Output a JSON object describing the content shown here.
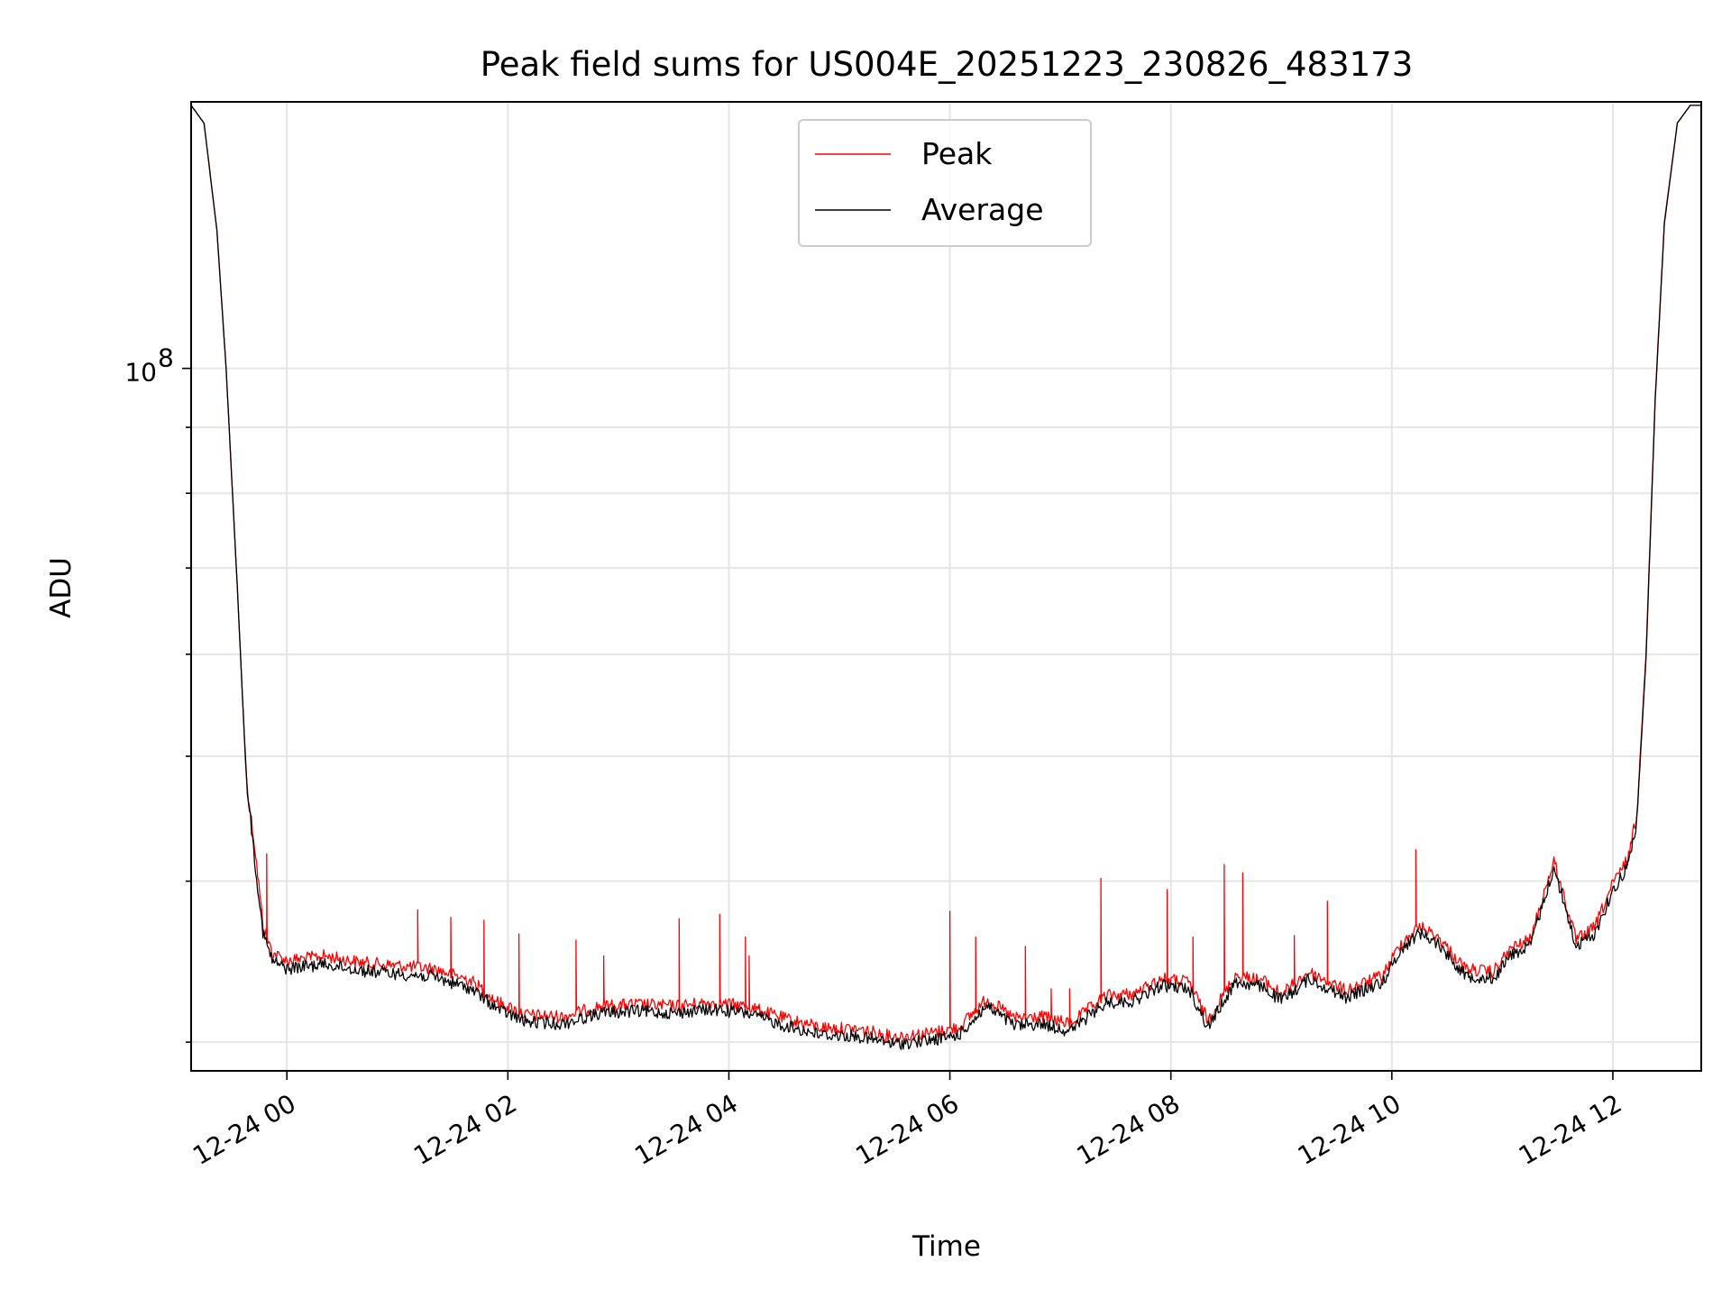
{
  "chart_data": {
    "type": "line",
    "title": "Peak field sums for US004E_20251223_230826_483173",
    "xlabel": "Time",
    "ylabel": "ADU",
    "yscale": "log",
    "ytick_labels": [
      {
        "base": "10",
        "exp": "8",
        "value": 100000000
      }
    ],
    "ylim": [
      28500000,
      161000000
    ],
    "xlim": [
      "2025-12-23 23:08",
      "2025-12-24 12:48"
    ],
    "xticks": [
      {
        "label": "12-24 00",
        "time": "2025-12-24 00:00"
      },
      {
        "label": "12-24 02",
        "time": "2025-12-24 02:00"
      },
      {
        "label": "12-24 04",
        "time": "2025-12-24 04:00"
      },
      {
        "label": "12-24 06",
        "time": "2025-12-24 06:00"
      },
      {
        "label": "12-24 08",
        "time": "2025-12-24 08:00"
      },
      {
        "label": "12-24 10",
        "time": "2025-12-24 10:00"
      },
      {
        "label": "12-24 12",
        "time": "2025-12-24 12:00"
      }
    ],
    "grid": true,
    "legend_position": "upper center",
    "series": [
      {
        "name": "Peak",
        "color": "#ff0000",
        "points": [
          [
            "2025-12-23 23:08",
            160000000
          ],
          [
            "2025-12-23 23:15",
            155000000
          ],
          [
            "2025-12-23 23:22",
            128000000
          ],
          [
            "2025-12-23 23:27",
            100000000
          ],
          [
            "2025-12-23 23:33",
            68000000
          ],
          [
            "2025-12-23 23:38",
            48000000
          ],
          [
            "2025-12-23 23:43",
            42000000
          ],
          [
            "2025-12-23 23:47",
            37000000
          ],
          [
            "2025-12-23 23:52",
            35200000
          ],
          [
            "2025-12-24 00:00",
            34700000
          ],
          [
            "2025-12-24 00:20",
            35000000
          ],
          [
            "2025-12-24 00:40",
            34600000
          ],
          [
            "2025-12-24 01:00",
            34400000
          ],
          [
            "2025-12-24 01:20",
            34200000
          ],
          [
            "2025-12-24 01:40",
            33500000
          ],
          [
            "2025-12-24 01:55",
            32200000
          ],
          [
            "2025-12-24 02:10",
            31500000
          ],
          [
            "2025-12-24 02:30",
            31400000
          ],
          [
            "2025-12-24 02:50",
            32000000
          ],
          [
            "2025-12-24 03:10",
            32100000
          ],
          [
            "2025-12-24 03:30",
            32000000
          ],
          [
            "2025-12-24 03:50",
            32200000
          ],
          [
            "2025-12-24 04:10",
            32000000
          ],
          [
            "2025-12-24 04:30",
            31300000
          ],
          [
            "2025-12-24 04:50",
            30800000
          ],
          [
            "2025-12-24 05:10",
            30700000
          ],
          [
            "2025-12-24 05:30",
            30300000
          ],
          [
            "2025-12-24 05:50",
            30500000
          ],
          [
            "2025-12-24 06:05",
            30800000
          ],
          [
            "2025-12-24 06:20",
            32400000
          ],
          [
            "2025-12-24 06:35",
            31300000
          ],
          [
            "2025-12-24 06:50",
            31400000
          ],
          [
            "2025-12-24 07:05",
            31000000
          ],
          [
            "2025-12-24 07:25",
            32600000
          ],
          [
            "2025-12-24 07:40",
            32700000
          ],
          [
            "2025-12-24 07:55",
            33600000
          ],
          [
            "2025-12-24 08:10",
            33400000
          ],
          [
            "2025-12-24 08:20",
            31200000
          ],
          [
            "2025-12-24 08:35",
            33800000
          ],
          [
            "2025-12-24 08:50",
            33500000
          ],
          [
            "2025-12-24 09:00",
            32700000
          ],
          [
            "2025-12-24 09:15",
            34000000
          ],
          [
            "2025-12-24 09:35",
            32900000
          ],
          [
            "2025-12-24 09:55",
            33800000
          ],
          [
            "2025-12-24 10:05",
            35800000
          ],
          [
            "2025-12-24 10:15",
            36900000
          ],
          [
            "2025-12-24 10:25",
            36200000
          ],
          [
            "2025-12-24 10:40",
            34200000
          ],
          [
            "2025-12-24 10:55",
            34000000
          ],
          [
            "2025-12-24 11:05",
            35500000
          ],
          [
            "2025-12-24 11:15",
            36000000
          ],
          [
            "2025-12-24 11:28",
            41500000
          ],
          [
            "2025-12-24 11:40",
            36000000
          ],
          [
            "2025-12-24 11:50",
            36800000
          ],
          [
            "2025-12-24 12:00",
            39800000
          ],
          [
            "2025-12-24 12:08",
            41600000
          ],
          [
            "2025-12-24 12:13",
            45000000
          ],
          [
            "2025-12-24 12:18",
            60000000
          ],
          [
            "2025-12-24 12:23",
            95000000
          ],
          [
            "2025-12-24 12:28",
            130000000
          ],
          [
            "2025-12-24 12:35",
            155000000
          ],
          [
            "2025-12-24 12:42",
            160000000
          ],
          [
            "2025-12-24 12:48",
            160000000
          ]
        ]
      },
      {
        "name": "Average",
        "color": "#000000",
        "points": [
          [
            "2025-12-23 23:08",
            160000000
          ],
          [
            "2025-12-23 23:15",
            155000000
          ],
          [
            "2025-12-23 23:22",
            128000000
          ],
          [
            "2025-12-23 23:27",
            100000000
          ],
          [
            "2025-12-23 23:33",
            68000000
          ],
          [
            "2025-12-23 23:38",
            48000000
          ],
          [
            "2025-12-23 23:43",
            41000000
          ],
          [
            "2025-12-23 23:47",
            36500000
          ],
          [
            "2025-12-23 23:52",
            34700000
          ],
          [
            "2025-12-24 00:00",
            34200000
          ],
          [
            "2025-12-24 00:20",
            34500000
          ],
          [
            "2025-12-24 00:40",
            34100000
          ],
          [
            "2025-12-24 01:00",
            33900000
          ],
          [
            "2025-12-24 01:20",
            33700000
          ],
          [
            "2025-12-24 01:40",
            33000000
          ],
          [
            "2025-12-24 01:55",
            31800000
          ],
          [
            "2025-12-24 02:10",
            31100000
          ],
          [
            "2025-12-24 02:30",
            31000000
          ],
          [
            "2025-12-24 02:50",
            31600000
          ],
          [
            "2025-12-24 03:10",
            31700000
          ],
          [
            "2025-12-24 03:30",
            31600000
          ],
          [
            "2025-12-24 03:50",
            31800000
          ],
          [
            "2025-12-24 04:10",
            31600000
          ],
          [
            "2025-12-24 04:30",
            30900000
          ],
          [
            "2025-12-24 04:50",
            30400000
          ],
          [
            "2025-12-24 05:10",
            30300000
          ],
          [
            "2025-12-24 05:30",
            29900000
          ],
          [
            "2025-12-24 05:50",
            30100000
          ],
          [
            "2025-12-24 06:05",
            30400000
          ],
          [
            "2025-12-24 06:20",
            32000000
          ],
          [
            "2025-12-24 06:35",
            30900000
          ],
          [
            "2025-12-24 06:50",
            31000000
          ],
          [
            "2025-12-24 07:05",
            30600000
          ],
          [
            "2025-12-24 07:25",
            32200000
          ],
          [
            "2025-12-24 07:40",
            32300000
          ],
          [
            "2025-12-24 07:55",
            33200000
          ],
          [
            "2025-12-24 08:10",
            33000000
          ],
          [
            "2025-12-24 08:20",
            30800000
          ],
          [
            "2025-12-24 08:35",
            33400000
          ],
          [
            "2025-12-24 08:50",
            33100000
          ],
          [
            "2025-12-24 09:00",
            32300000
          ],
          [
            "2025-12-24 09:15",
            33600000
          ],
          [
            "2025-12-24 09:35",
            32500000
          ],
          [
            "2025-12-24 09:55",
            33400000
          ],
          [
            "2025-12-24 10:05",
            35400000
          ],
          [
            "2025-12-24 10:15",
            36500000
          ],
          [
            "2025-12-24 10:25",
            35800000
          ],
          [
            "2025-12-24 10:40",
            33800000
          ],
          [
            "2025-12-24 10:55",
            33600000
          ],
          [
            "2025-12-24 11:05",
            35100000
          ],
          [
            "2025-12-24 11:15",
            35600000
          ],
          [
            "2025-12-24 11:28",
            41000000
          ],
          [
            "2025-12-24 11:40",
            35600000
          ],
          [
            "2025-12-24 11:50",
            36400000
          ],
          [
            "2025-12-24 12:00",
            39300000
          ],
          [
            "2025-12-24 12:08",
            41100000
          ],
          [
            "2025-12-24 12:13",
            44500000
          ],
          [
            "2025-12-24 12:18",
            59500000
          ],
          [
            "2025-12-24 12:23",
            94500000
          ],
          [
            "2025-12-24 12:28",
            129500000
          ],
          [
            "2025-12-24 12:35",
            155000000
          ],
          [
            "2025-12-24 12:42",
            160000000
          ],
          [
            "2025-12-24 12:48",
            160000000
          ]
        ]
      }
    ],
    "spikes": [
      [
        "2025-12-23 23:49",
        42000000
      ],
      [
        "2025-12-24 01:11",
        38000000
      ],
      [
        "2025-12-24 01:29",
        37500000
      ],
      [
        "2025-12-24 01:47",
        37300000
      ],
      [
        "2025-12-24 02:06",
        36400000
      ],
      [
        "2025-12-24 02:37",
        36000000
      ],
      [
        "2025-12-24 02:52",
        35000000
      ],
      [
        "2025-12-24 03:33",
        37400000
      ],
      [
        "2025-12-24 03:55",
        37700000
      ],
      [
        "2025-12-24 04:09",
        36200000
      ],
      [
        "2025-12-24 04:11",
        35000000
      ],
      [
        "2025-12-24 06:00",
        37900000
      ],
      [
        "2025-12-24 06:14",
        36200000
      ],
      [
        "2025-12-24 06:41",
        35600000
      ],
      [
        "2025-12-24 06:55",
        33000000
      ],
      [
        "2025-12-24 07:05",
        33000000
      ],
      [
        "2025-12-24 07:22",
        40200000
      ],
      [
        "2025-12-24 07:58",
        39400000
      ],
      [
        "2025-12-24 08:12",
        36200000
      ],
      [
        "2025-12-24 08:29",
        41200000
      ],
      [
        "2025-12-24 08:39",
        40600000
      ],
      [
        "2025-12-24 09:07",
        36300000
      ],
      [
        "2025-12-24 09:25",
        38600000
      ],
      [
        "2025-12-24 10:13",
        42300000
      ]
    ]
  }
}
